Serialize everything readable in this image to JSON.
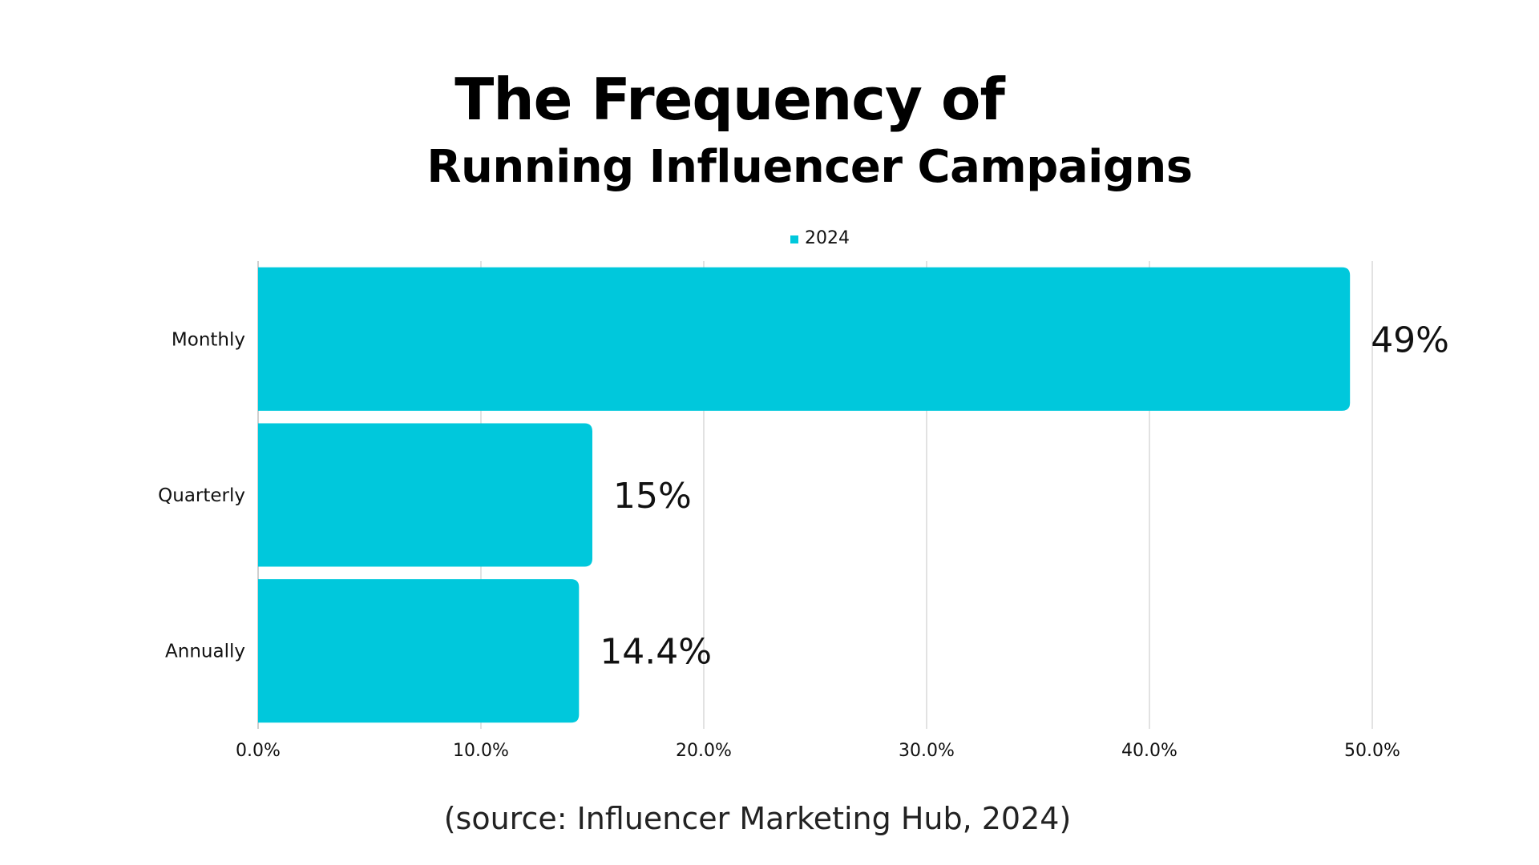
{
  "title": {
    "line1": "The Frequency of",
    "line2": "Running Influencer Campaigns"
  },
  "source": "(source: Influencer Marketing Hub, 2024)",
  "colors": {
    "bar": "#00c8dc",
    "grid": "#d9d9d9",
    "axis_text": "#111111",
    "label_text": "#111111"
  },
  "chart_data": {
    "type": "bar",
    "orientation": "horizontal",
    "categories": [
      "Monthly",
      "Quarterly",
      "Annually"
    ],
    "series": [
      {
        "name": "2024",
        "values": [
          49,
          15,
          14.4
        ],
        "value_labels": [
          "49%",
          "15%",
          "14.4%"
        ]
      }
    ],
    "xlim": [
      0,
      50
    ],
    "x_ticks": [
      0,
      10,
      20,
      30,
      40,
      50
    ],
    "x_tick_labels": [
      "0.0%",
      "10.0%",
      "20.0%",
      "30.0%",
      "40.0%",
      "50.0%"
    ],
    "grid": true,
    "legend_placement": "top-center"
  }
}
